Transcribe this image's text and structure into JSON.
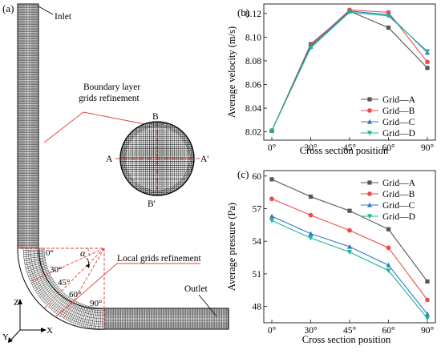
{
  "figure": {
    "panel_a": {
      "label": "(a)",
      "inlet": "Inlet",
      "outlet": "Outlet",
      "boundary_label_1": "Boundary layer",
      "boundary_label_2": "grids refinement",
      "local_label": "Local grids refinement",
      "section_labels": {
        "a": "A",
        "a_prime": "A'",
        "b": "B",
        "b_prime": "B'"
      },
      "angle_symbol": "α",
      "angles": [
        "0°",
        "30°",
        "45°",
        "60°",
        "90°"
      ],
      "axes": {
        "z": "Z",
        "x": "X",
        "y": "Y"
      },
      "colors": {
        "annotation": "#e4423b",
        "mesh": "#000000"
      }
    },
    "panel_b": {
      "label": "(b)"
    },
    "panel_c": {
      "label": "(c)"
    }
  },
  "chart_data": [
    {
      "type": "line",
      "categories": [
        "0°",
        "30°",
        "45°",
        "60°",
        "90°"
      ],
      "xlabel": "Cross section position",
      "ylabel": "Average velocity (m/s)",
      "ylim": [
        8.013,
        8.128
      ],
      "yticks": [
        "8.02",
        "8.04",
        "8.06",
        "8.08",
        "8.10",
        "8.12"
      ],
      "legend_position": "bottom-right",
      "series": [
        {
          "name": "Grid—A",
          "color": "#555555",
          "marker": "square",
          "values": [
            8.021,
            8.094,
            8.122,
            8.108,
            8.074
          ]
        },
        {
          "name": "Grid—B",
          "color": "#f04a4a",
          "marker": "circle",
          "values": [
            8.021,
            8.093,
            8.123,
            8.121,
            8.079
          ]
        },
        {
          "name": "Grid—C",
          "color": "#2b79c9",
          "marker": "triangle",
          "values": [
            8.021,
            8.092,
            8.122,
            8.119,
            8.087
          ]
        },
        {
          "name": "Grid—D",
          "color": "#16b88a",
          "marker": "tri-down",
          "values": [
            8.021,
            8.091,
            8.121,
            8.118,
            8.088
          ]
        }
      ]
    },
    {
      "type": "line",
      "categories": [
        "0°",
        "30°",
        "45°",
        "60°",
        "90°"
      ],
      "xlabel": "Cross section position",
      "ylabel": "Average pressure (Pa)",
      "ylim": [
        46.5,
        60.5
      ],
      "yticks": [
        "48",
        "51",
        "54",
        "57",
        "60"
      ],
      "legend_position": "top-right",
      "series": [
        {
          "name": "Grid—A",
          "color": "#555555",
          "marker": "square",
          "values": [
            59.7,
            58.1,
            56.8,
            55.1,
            50.3
          ]
        },
        {
          "name": "Grid—B",
          "color": "#f04a4a",
          "marker": "circle",
          "values": [
            57.9,
            56.4,
            55.0,
            53.4,
            48.6
          ]
        },
        {
          "name": "Grid—C",
          "color": "#2b79c9",
          "marker": "triangle",
          "values": [
            56.3,
            54.7,
            53.5,
            51.8,
            47.3
          ]
        },
        {
          "name": "Grid—D",
          "color": "#16b88a",
          "marker": "tri-down",
          "values": [
            55.9,
            54.3,
            53.0,
            51.3,
            46.9
          ]
        }
      ]
    }
  ]
}
